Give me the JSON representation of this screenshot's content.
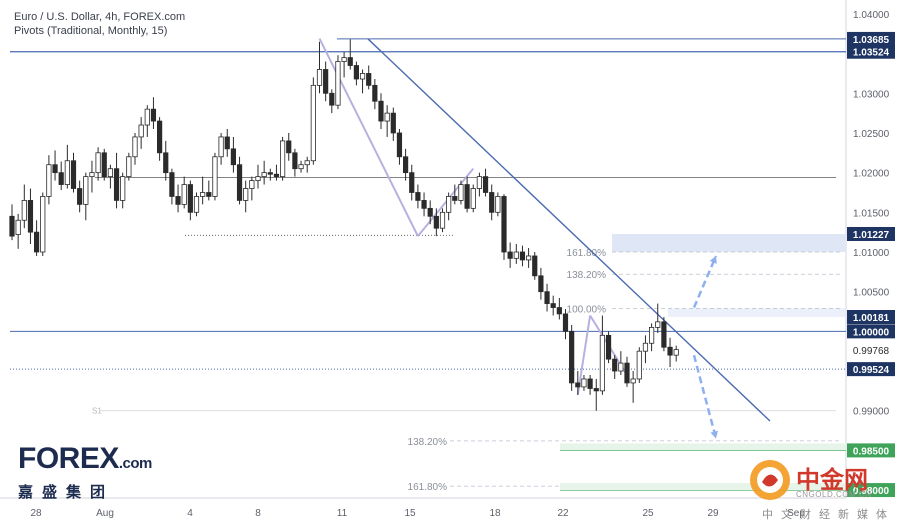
{
  "header": {
    "title": "Euro / U.S. Dollar, 4h, FOREX.com",
    "indicator": "Pivots (Traditional, Monthly, 15)"
  },
  "logo": {
    "brand": "FOREX",
    "suffix": ".com",
    "chinese": "嘉盛集团"
  },
  "watermark": {
    "title": "中金网",
    "url": "CNGOLD.COM.CN",
    "subtitle": "中文财经新媒体"
  },
  "colors": {
    "trendline": "#4a6ab0",
    "target_zone": "#dfe6f6",
    "support_zone": "#3fa45a",
    "arrow": "#8fb0ef",
    "bull_candle": "#ffffff",
    "bear_candle": "#2b2b2b"
  },
  "chart_data": {
    "type": "candlestick",
    "timeframe": "4h",
    "symbol": "EUR/USD",
    "x_ticks": [
      "28",
      "Aug",
      "4",
      "8",
      "11",
      "15",
      "18",
      "22",
      "25",
      "29",
      "Sep"
    ],
    "y_range": [
      0.979,
      1.041
    ],
    "y_ticks": [
      "1.04000",
      "1.03500",
      "1.03000",
      "1.02500",
      "1.02000",
      "1.01500",
      "1.01000",
      "1.00500",
      "1.00000",
      "0.99500",
      "0.99000",
      "0.98500"
    ],
    "price_labels": [
      {
        "text": "1.03685",
        "value": 1.03685,
        "style": "dark"
      },
      {
        "text": "1.03524",
        "value": 1.03524,
        "style": "dark"
      },
      {
        "text": "1.01227",
        "value": 1.01227,
        "style": "dark"
      },
      {
        "text": "1.00181",
        "value": 1.00181,
        "style": "dark"
      },
      {
        "text": "1.00000",
        "value": 1.0,
        "style": "dark"
      },
      {
        "text": "0.99768",
        "value": 0.99768,
        "style": "light"
      },
      {
        "text": "0.99524",
        "value": 0.99524,
        "style": "dark"
      },
      {
        "text": "0.98500",
        "value": 0.985,
        "style": "green"
      },
      {
        "text": "0.98000",
        "value": 0.98,
        "style": "green"
      }
    ],
    "horizontal_levels": [
      {
        "value": 1.03524,
        "style": "solid"
      },
      {
        "value": 1.0,
        "style": "solid"
      },
      {
        "value": 1.0194,
        "style": "solid-thin"
      },
      {
        "value": 0.99524,
        "style": "dotted"
      },
      {
        "value": 1.0121,
        "style": "dotted-short"
      },
      {
        "value": 0.99,
        "style": "faint"
      }
    ],
    "fib_levels": [
      {
        "label": "161.80%",
        "value": 1.01
      },
      {
        "label": "138.20%",
        "value": 1.0072
      },
      {
        "label": "100.00%",
        "value": 1.0029
      },
      {
        "label": "138.20%",
        "value": 0.9862
      },
      {
        "label": "161.80%",
        "value": 0.9805
      }
    ],
    "pivot_label": "S1",
    "candles": [
      [
        1.0145,
        1.016,
        1.0115,
        1.012
      ],
      [
        1.0122,
        1.0148,
        1.0104,
        1.014
      ],
      [
        1.014,
        1.0185,
        1.013,
        1.0165
      ],
      [
        1.0165,
        1.018,
        1.011,
        1.0125
      ],
      [
        1.0125,
        1.014,
        1.0095,
        1.01
      ],
      [
        1.01,
        1.0175,
        1.0095,
        1.017
      ],
      [
        1.017,
        1.0222,
        1.016,
        1.021
      ],
      [
        1.021,
        1.0228,
        1.019,
        1.02
      ],
      [
        1.02,
        1.0214,
        1.0178,
        1.0185
      ],
      [
        1.0185,
        1.0235,
        1.018,
        1.0215
      ],
      [
        1.0215,
        1.0225,
        1.0175,
        1.018
      ],
      [
        1.018,
        1.019,
        1.015,
        1.016
      ],
      [
        1.016,
        1.02,
        1.014,
        1.0195
      ],
      [
        1.0195,
        1.0215,
        1.0175,
        1.02
      ],
      [
        1.02,
        1.0232,
        1.019,
        1.0225
      ],
      [
        1.0225,
        1.023,
        1.019,
        1.0195
      ],
      [
        1.0195,
        1.021,
        1.018,
        1.0205
      ],
      [
        1.0205,
        1.0225,
        1.0155,
        1.0165
      ],
      [
        1.0165,
        1.02,
        1.0155,
        1.0195
      ],
      [
        1.0195,
        1.0225,
        1.019,
        1.022
      ],
      [
        1.022,
        1.025,
        1.021,
        1.0245
      ],
      [
        1.0245,
        1.027,
        1.023,
        1.026
      ],
      [
        1.026,
        1.0285,
        1.0245,
        1.028
      ],
      [
        1.028,
        1.0295,
        1.0255,
        1.0265
      ],
      [
        1.0265,
        1.027,
        1.0215,
        1.0225
      ],
      [
        1.0225,
        1.024,
        1.019,
        1.02
      ],
      [
        1.02,
        1.0205,
        1.016,
        1.017
      ],
      [
        1.017,
        1.0185,
        1.015,
        1.016
      ],
      [
        1.016,
        1.0195,
        1.0155,
        1.0185
      ],
      [
        1.0185,
        1.019,
        1.014,
        1.015
      ],
      [
        1.015,
        1.0175,
        1.0145,
        1.017
      ],
      [
        1.017,
        1.0195,
        1.016,
        1.0175
      ],
      [
        1.0175,
        1.019,
        1.0165,
        1.017
      ],
      [
        1.017,
        1.0225,
        1.0165,
        1.022
      ],
      [
        1.022,
        1.025,
        1.021,
        1.0245
      ],
      [
        1.0245,
        1.0255,
        1.022,
        1.023
      ],
      [
        1.023,
        1.0245,
        1.02,
        1.021
      ],
      [
        1.021,
        1.022,
        1.016,
        1.0165
      ],
      [
        1.0165,
        1.019,
        1.015,
        1.018
      ],
      [
        1.018,
        1.0195,
        1.0165,
        1.019
      ],
      [
        1.019,
        1.021,
        1.018,
        1.0195
      ],
      [
        1.0195,
        1.0215,
        1.0185,
        1.02
      ],
      [
        1.02,
        1.0205,
        1.019,
        1.0198
      ],
      [
        1.0198,
        1.021,
        1.019,
        1.0195
      ],
      [
        1.0195,
        1.0245,
        1.019,
        1.024
      ],
      [
        1.024,
        1.025,
        1.0215,
        1.0225
      ],
      [
        1.0225,
        1.023,
        1.0195,
        1.0205
      ],
      [
        1.0205,
        1.0215,
        1.02,
        1.021
      ],
      [
        1.021,
        1.022,
        1.02,
        1.0215
      ],
      [
        1.0215,
        1.032,
        1.021,
        1.031
      ],
      [
        1.031,
        1.0365,
        1.03,
        1.033
      ],
      [
        1.033,
        1.034,
        1.029,
        1.03
      ],
      [
        1.03,
        1.0305,
        1.0275,
        1.0285
      ],
      [
        1.0285,
        1.0348,
        1.028,
        1.034
      ],
      [
        1.034,
        1.0352,
        1.032,
        1.0345
      ],
      [
        1.0345,
        1.0368,
        1.033,
        1.0335
      ],
      [
        1.0335,
        1.034,
        1.031,
        1.0318
      ],
      [
        1.0318,
        1.033,
        1.03,
        1.0325
      ],
      [
        1.0325,
        1.0335,
        1.0305,
        1.031
      ],
      [
        1.031,
        1.0318,
        1.028,
        1.029
      ],
      [
        1.029,
        1.03,
        1.0255,
        1.0265
      ],
      [
        1.0265,
        1.0285,
        1.0245,
        1.0275
      ],
      [
        1.0275,
        1.0282,
        1.024,
        1.025
      ],
      [
        1.025,
        1.0255,
        1.021,
        1.022
      ],
      [
        1.022,
        1.023,
        1.019,
        1.02
      ],
      [
        1.02,
        1.021,
        1.0165,
        1.0175
      ],
      [
        1.0175,
        1.0185,
        1.0155,
        1.0165
      ],
      [
        1.0165,
        1.0175,
        1.0145,
        1.0155
      ],
      [
        1.0155,
        1.0165,
        1.0135,
        1.0145
      ],
      [
        1.0145,
        1.0155,
        1.012,
        1.013
      ],
      [
        1.013,
        1.0155,
        1.0125,
        1.015
      ],
      [
        1.015,
        1.0175,
        1.014,
        1.017
      ],
      [
        1.017,
        1.0185,
        1.016,
        1.0165
      ],
      [
        1.0165,
        1.019,
        1.016,
        1.0185
      ],
      [
        1.0185,
        1.0195,
        1.015,
        1.0155
      ],
      [
        1.0155,
        1.0185,
        1.015,
        1.018
      ],
      [
        1.018,
        1.02,
        1.017,
        1.0195
      ],
      [
        1.0195,
        1.0205,
        1.017,
        1.0175
      ],
      [
        1.0175,
        1.0185,
        1.014,
        1.015
      ],
      [
        1.015,
        1.0175,
        1.0145,
        1.017
      ],
      [
        1.017,
        1.0173,
        1.009,
        1.01
      ],
      [
        1.01,
        1.0112,
        1.008,
        1.0092
      ],
      [
        1.0092,
        1.011,
        1.0085,
        1.01
      ],
      [
        1.01,
        1.0108,
        1.0082,
        1.009
      ],
      [
        1.009,
        1.0105,
        1.008,
        1.0095
      ],
      [
        1.0095,
        1.01,
        1.0065,
        1.007
      ],
      [
        1.007,
        1.008,
        1.004,
        1.005
      ],
      [
        1.005,
        1.006,
        1.0025,
        1.0035
      ],
      [
        1.0035,
        1.0045,
        1.002,
        1.003
      ],
      [
        1.003,
        1.0042,
        1.0015,
        1.0022
      ],
      [
        1.0022,
        1.0028,
        0.999,
        1.0
      ],
      [
        1.0,
        1.0008,
        0.9925,
        0.9935
      ],
      [
        0.9935,
        0.995,
        0.992,
        0.993
      ],
      [
        0.993,
        0.9945,
        0.9925,
        0.994
      ],
      [
        0.994,
        0.9945,
        0.992,
        0.9928
      ],
      [
        0.9928,
        0.994,
        0.99,
        0.9925
      ],
      [
        0.9925,
        1.002,
        0.992,
        0.9995
      ],
      [
        0.9995,
        1.0,
        0.996,
        0.9965
      ],
      [
        0.9965,
        0.997,
        0.994,
        0.995
      ],
      [
        0.995,
        0.9975,
        0.9945,
        0.996
      ],
      [
        0.996,
        0.9968,
        0.993,
        0.9935
      ],
      [
        0.9935,
        0.995,
        0.991,
        0.994
      ],
      [
        0.994,
        0.998,
        0.9935,
        0.9975
      ],
      [
        0.9975,
        0.9995,
        0.996,
        0.9985
      ],
      [
        0.9985,
        1.001,
        0.9975,
        1.0005
      ],
      [
        1.0005,
        1.0035,
        0.9998,
        1.0012
      ],
      [
        1.0012,
        1.0018,
        0.9975,
        0.998
      ],
      [
        0.998,
        0.9992,
        0.9955,
        0.997
      ],
      [
        0.997,
        0.9982,
        0.9962,
        0.9977
      ]
    ],
    "trendline": {
      "from": [
        52,
        1.03685
      ],
      "to": [
        118,
        0.9887
      ]
    },
    "swing_lines": [
      {
        "from": [
          50,
          1.0369
        ],
        "to": [
          66,
          1.012
        ]
      },
      {
        "from": [
          66,
          1.012
        ],
        "to": [
          75,
          1.0205
        ]
      },
      {
        "from": [
          92,
          0.992
        ],
        "to": [
          94,
          1.002
        ]
      },
      {
        "from": [
          94,
          1.002
        ],
        "to": [
          100,
          0.9945
        ]
      }
    ],
    "target_zones": [
      {
        "from": 1.01227,
        "to": 1.01,
        "fill": "light-blue"
      },
      {
        "from": 1.00181,
        "to": 1.0029,
        "fill": "light-blue"
      }
    ],
    "support_lines": [
      0.985,
      0.98
    ],
    "scenario_arrows": [
      {
        "from": [
          102,
          1.003
        ],
        "to": [
          107,
          1.0095
        ],
        "direction": "up"
      },
      {
        "from": [
          102,
          0.997
        ],
        "to": [
          107,
          0.9865
        ],
        "direction": "down"
      }
    ],
    "grid": false,
    "legend": "none"
  }
}
